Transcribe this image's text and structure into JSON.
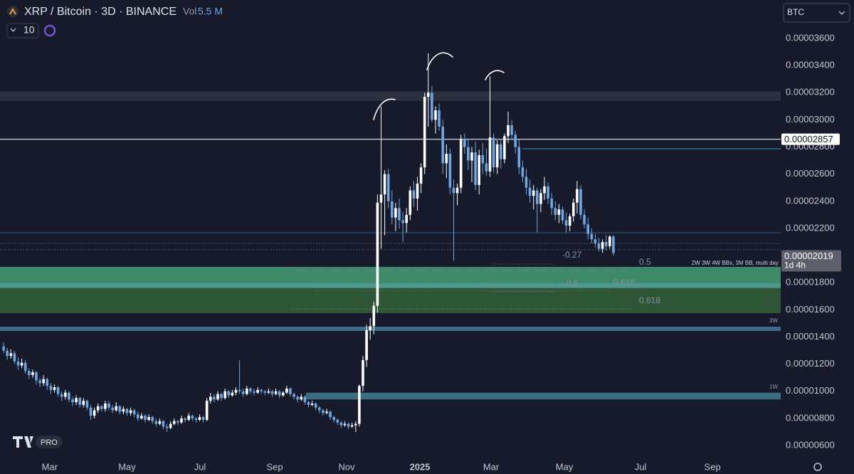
{
  "chart_data": {
    "type": "candlestick",
    "title": "XRP / Bitcoin · 3D · BINANCE",
    "volume_label": "Vol",
    "volume": "5.5 M",
    "interval_input": "10",
    "currency": "BTC",
    "up_color": "#ffffff",
    "down_color": "#6fa6df",
    "xlim": [
      -1,
      214.1
    ],
    "xticks": [
      {
        "value": 12.7,
        "label": "Mar"
      },
      {
        "value": 34,
        "label": "May"
      },
      {
        "value": 54.1,
        "label": "Jul"
      },
      {
        "value": 74.7,
        "label": "Sep"
      },
      {
        "value": 94.5,
        "label": "Nov"
      },
      {
        "value": 114.7,
        "label": "2025",
        "bold": true
      },
      {
        "value": 134.3,
        "label": "Mar"
      },
      {
        "value": 154.5,
        "label": "May"
      },
      {
        "value": 175.5,
        "label": "Jul"
      },
      {
        "value": 195.3,
        "label": "Sep"
      }
    ],
    "ylim": [
      5.27e-06,
      3.883e-05
    ],
    "yticks": [
      {
        "value": 6e-06,
        "label": "0.00000600"
      },
      {
        "value": 8e-06,
        "label": "0.00000800"
      },
      {
        "value": 1e-05,
        "label": "0.00001000"
      },
      {
        "value": 1.2e-05,
        "label": "0.00001200"
      },
      {
        "value": 1.4e-05,
        "label": "0.00001400"
      },
      {
        "value": 1.6e-05,
        "label": "0.00001600"
      },
      {
        "value": 1.8e-05,
        "label": "0.00001800"
      },
      {
        "value": 2e-05,
        "label": "0.00002000"
      },
      {
        "value": 2.2e-05,
        "label": "0.00002200"
      },
      {
        "value": 2.4e-05,
        "label": "0.00002400"
      },
      {
        "value": 2.6e-05,
        "label": "0.00002600"
      },
      {
        "value": 2.8e-05,
        "label": "0.00002800"
      },
      {
        "value": 3e-05,
        "label": "0.00003000"
      },
      {
        "value": 3.2e-05,
        "label": "0.00003200"
      },
      {
        "value": 3.4e-05,
        "label": "0.00003400"
      },
      {
        "value": 3.6e-05,
        "label": "0.00003600"
      }
    ],
    "grid": false,
    "zones": [
      {
        "top": 3.21e-05,
        "bottom": 3.14e-05,
        "color": "#2b3040"
      },
      {
        "top": 1.917e-05,
        "bottom": 1.796e-05,
        "color": "#3e8a68"
      },
      {
        "top": 1.796e-05,
        "bottom": 1.76e-05,
        "color": "#4d9a8c"
      },
      {
        "top": 1.76e-05,
        "bottom": 1.576e-05,
        "color": "#2e5636"
      },
      {
        "top": 1.476e-05,
        "bottom": 1.445e-05,
        "color": "#3c6c88",
        "name": "3W"
      },
      {
        "top": 9.9e-06,
        "bottom": 9.4e-06,
        "color": "#3a6f80",
        "start": 83.3,
        "name": "1W"
      }
    ],
    "lines": [
      {
        "value": 2.787e-05,
        "color": "#2f6f8f",
        "start": 143
      },
      {
        "value": 2.168e-05,
        "color": "#2c4868"
      },
      {
        "value": 2.09e-05,
        "color": "#5a5f6e",
        "dash": true
      },
      {
        "value": 2.043e-05,
        "color": "#5a5f6e",
        "dash": true
      }
    ],
    "price_line": {
      "value": 2.857e-05,
      "label": "0.00002857",
      "color": "#b8bcc6"
    },
    "last_price": {
      "value": 2.019e-05,
      "label": "0.00002019",
      "countdown": "1d 4h"
    },
    "fib_labels": [
      "-0.27",
      "0.5",
      "-0.5",
      "0.618",
      "0.618"
    ],
    "indicator_label": "2W 3W 4W BBs, 3M BB, multi day",
    "candles": [
      [
        1.33e-05,
        1.36e-05,
        1.28e-05,
        1.3e-05
      ],
      [
        1.3e-05,
        1.32e-05,
        1.23e-05,
        1.26e-05
      ],
      [
        1.26e-05,
        1.31e-05,
        1.24e-05,
        1.28e-05
      ],
      [
        1.28e-05,
        1.3e-05,
        1.2e-05,
        1.22e-05
      ],
      [
        1.22e-05,
        1.25e-05,
        1.16e-05,
        1.19e-05
      ],
      [
        1.19e-05,
        1.24e-05,
        1.17e-05,
        1.21e-05
      ],
      [
        1.21e-05,
        1.23e-05,
        1.13e-05,
        1.15e-05
      ],
      [
        1.15e-05,
        1.17e-05,
        1.09e-05,
        1.12e-05
      ],
      [
        1.12e-05,
        1.16e-05,
        1.1e-05,
        1.14e-05
      ],
      [
        1.14e-05,
        1.15e-05,
        1.05e-05,
        1.08e-05
      ],
      [
        1.08e-05,
        1.1e-05,
        1.03e-05,
        1.06e-05
      ],
      [
        1.06e-05,
        1.12e-05,
        1.04e-05,
        1.09e-05
      ],
      [
        1.09e-05,
        1.1e-05,
        1.01e-05,
        1.04e-05
      ],
      [
        1.04e-05,
        1.06e-05,
        9.8e-06,
        1.01e-05
      ],
      [
        1.01e-05,
        1.05e-05,
        9.9e-06,
        1.03e-05
      ],
      [
        1.03e-05,
        1.04e-05,
        9.6e-06,
        9.8e-06
      ],
      [
        9.8e-06,
        1e-05,
        9.3e-06,
        9.6e-06
      ],
      [
        9.6e-06,
        1.01e-05,
        9.4e-06,
        9.9e-06
      ],
      [
        9.9e-06,
        1e-05,
        9.2e-06,
        9.4e-06
      ],
      [
        9.4e-06,
        9.6e-06,
        8.9e-06,
        9.2e-06
      ],
      [
        9.2e-06,
        9.7e-06,
        9e-06,
        9.5e-06
      ],
      [
        9.5e-06,
        9.6e-06,
        8.8e-06,
        9e-06
      ],
      [
        9e-06,
        9.5e-06,
        8.8e-06,
        9.3e-06
      ],
      [
        9.3e-06,
        9.4e-06,
        8.6e-06,
        8.8e-06
      ],
      [
        8.8e-06,
        9e-06,
        7.9e-06,
        8.2e-06
      ],
      [
        8.2e-06,
        8.8e-06,
        8e-06,
        8.6e-06
      ],
      [
        8.6e-06,
        9.1e-06,
        8.4e-06,
        8.9e-06
      ],
      [
        8.9e-06,
        9e-06,
        8.5e-06,
        8.7e-06
      ],
      [
        8.7e-06,
        9.3e-06,
        8.5e-06,
        9.1e-06
      ],
      [
        9.1e-06,
        9.3e-06,
        8.6e-06,
        8.8e-06
      ],
      [
        8.8e-06,
        9e-06,
        8.4e-06,
        8.6e-06
      ],
      [
        8.6e-06,
        9.2e-06,
        8.5e-06,
        8.9e-06
      ],
      [
        8.9e-06,
        9e-06,
        8.3e-06,
        8.5e-06
      ],
      [
        8.5e-06,
        8.9e-06,
        8.3e-06,
        8.7e-06
      ],
      [
        8.7e-06,
        8.8e-06,
        8.2e-06,
        8.4e-06
      ],
      [
        8.4e-06,
        8.8e-06,
        8.2e-06,
        8.6e-06
      ],
      [
        8.6e-06,
        8.7e-06,
        8.1e-06,
        8.3e-06
      ],
      [
        8.3e-06,
        8.5e-06,
        7.8e-06,
        8e-06
      ],
      [
        8e-06,
        8.4e-06,
        7.9e-06,
        8.2e-06
      ],
      [
        8.2e-06,
        8.3e-06,
        7.7e-06,
        7.9e-06
      ],
      [
        7.9e-06,
        8.3e-06,
        7.8e-06,
        8.1e-06
      ],
      [
        8.1e-06,
        8.2e-06,
        7.6e-06,
        7.8e-06
      ],
      [
        7.8e-06,
        8e-06,
        7.4e-06,
        7.6e-06
      ],
      [
        7.6e-06,
        8e-06,
        7.5e-06,
        7.8e-06
      ],
      [
        7.8e-06,
        7.9e-06,
        7.2e-06,
        7.4e-06
      ],
      [
        7.4e-06,
        7.6e-06,
        7e-06,
        7.3e-06
      ],
      [
        7.3e-06,
        7.8e-06,
        7.2e-06,
        7.6e-06
      ],
      [
        7.6e-06,
        8e-06,
        7.5e-06,
        7.8e-06
      ],
      [
        7.8e-06,
        7.9e-06,
        7.5e-06,
        7.7e-06
      ],
      [
        7.7e-06,
        8.2e-06,
        7.6e-06,
        8e-06
      ],
      [
        8e-06,
        8.1e-06,
        7.7e-06,
        7.9e-06
      ],
      [
        7.9e-06,
        8.4e-06,
        7.8e-06,
        8.2e-06
      ],
      [
        8.2e-06,
        8.3e-06,
        7.8e-06,
        8e-06
      ],
      [
        8e-06,
        8.1e-06,
        7.7e-06,
        7.9e-06
      ],
      [
        7.9e-06,
        8.3e-06,
        7.8e-06,
        8.1e-06
      ],
      [
        8.1e-06,
        8.2e-06,
        7.7e-06,
        7.9e-06
      ],
      [
        7.9e-06,
        9.5e-06,
        7.8e-06,
        9.3e-06
      ],
      [
        9.3e-06,
        9.9e-06,
        9.1e-06,
        9.6e-06
      ],
      [
        9.6e-06,
        9.8e-06,
        9.2e-06,
        9.4e-06
      ],
      [
        9.4e-06,
        1e-05,
        9.3e-06,
        9.8e-06
      ],
      [
        9.8e-06,
        9.9e-06,
        9.3e-06,
        9.5e-06
      ],
      [
        9.5e-06,
        1.02e-05,
        9.4e-06,
        1e-05
      ],
      [
        1e-05,
        1.01e-05,
        9.5e-06,
        9.7e-06
      ],
      [
        9.7e-06,
        1.01e-05,
        9.6e-06,
        9.9e-06
      ],
      [
        9.9e-06,
        1.03e-05,
        9.7e-06,
        1.01e-05
      ],
      [
        1.01e-05,
        1.23e-05,
        9.8e-06,
        1e-05
      ],
      [
        1e-05,
        1.02e-05,
        9.6e-06,
        9.8e-06
      ],
      [
        9.8e-06,
        1.04e-05,
        9.7e-06,
        1.02e-05
      ],
      [
        1.02e-05,
        1.03e-05,
        9.8e-06,
        1e-05
      ],
      [
        1e-05,
        1.02e-05,
        9.7e-06,
        9.9e-06
      ],
      [
        9.9e-06,
        1.03e-05,
        9.8e-06,
        1.01e-05
      ],
      [
        1.01e-05,
        1.02e-05,
        9.8e-06,
        1e-05
      ],
      [
        1e-05,
        1.01e-05,
        9.7e-06,
        9.9e-06
      ],
      [
        9.9e-06,
        1.02e-05,
        9.8e-06,
        1e-05
      ],
      [
        1e-05,
        1.01e-05,
        9.6e-06,
        9.8e-06
      ],
      [
        9.8e-06,
        1.02e-05,
        9.7e-06,
        1e-05
      ],
      [
        1e-05,
        1.01e-05,
        9.5e-06,
        9.7e-06
      ],
      [
        9.7e-06,
        1e-05,
        9.6e-06,
        9.9e-06
      ],
      [
        9.9e-06,
        1.04e-05,
        9.8e-06,
        1.02e-05
      ],
      [
        1.02e-05,
        1.03e-05,
        9.6e-06,
        9.8e-06
      ],
      [
        9.8e-06,
        9.9e-06,
        9.4e-06,
        9.6e-06
      ],
      [
        9.6e-06,
        9.7e-06,
        9.2e-06,
        9.4e-06
      ],
      [
        9.4e-06,
        9.8e-06,
        9.3e-06,
        9.6e-06
      ],
      [
        9.6e-06,
        9.7e-06,
        9e-06,
        9.2e-06
      ],
      [
        9.2e-06,
        9.3e-06,
        8.8e-06,
        9e-06
      ],
      [
        9e-06,
        9.3e-06,
        8.9e-06,
        9.1e-06
      ],
      [
        9.1e-06,
        9.2e-06,
        8.6e-06,
        8.8e-06
      ],
      [
        8.8e-06,
        8.9e-06,
        8.4e-06,
        8.6e-06
      ],
      [
        8.6e-06,
        8.7e-06,
        8.2e-06,
        8.4e-06
      ],
      [
        8.4e-06,
        8.7e-06,
        8.3e-06,
        8.5e-06
      ],
      [
        8.5e-06,
        8.6e-06,
        7.9e-06,
        8.1e-06
      ],
      [
        8.1e-06,
        8.2e-06,
        7.7e-06,
        7.9e-06
      ],
      [
        7.9e-06,
        8e-06,
        7.5e-06,
        7.7e-06
      ],
      [
        7.7e-06,
        7.8e-06,
        7.3e-06,
        7.5e-06
      ],
      [
        7.5e-06,
        7.8e-06,
        7.4e-06,
        7.6e-06
      ],
      [
        7.6e-06,
        7.7e-06,
        7.2e-06,
        7.4e-06
      ],
      [
        7.4e-06,
        7.7e-06,
        7.3e-06,
        7.5e-06
      ],
      [
        7.5e-06,
        7.8e-06,
        7e-06,
        7.6e-06
      ],
      [
        7.6e-06,
        1.05e-05,
        7.4e-06,
        1.04e-05
      ],
      [
        1.04e-05,
        1.26e-05,
        1e-05,
        1.23e-05
      ],
      [
        1.23e-05,
        1.49e-05,
        1.18e-05,
        1.45e-05
      ],
      [
        1.45e-05,
        1.54e-05,
        1.38e-05,
        1.48e-05
      ],
      [
        1.48e-05,
        1.66e-05,
        1.42e-05,
        1.63e-05
      ],
      [
        1.63e-05,
        2.45e-05,
        1.58e-05,
        2.39e-05
      ],
      [
        2.39e-05,
        3.1e-05,
        2.05e-05,
        2.45e-05
      ],
      [
        2.45e-05,
        2.63e-05,
        2.15e-05,
        2.6e-05
      ],
      [
        2.6e-05,
        2.64e-05,
        2.35e-05,
        2.4e-05
      ],
      [
        2.4e-05,
        2.48e-05,
        2.23e-05,
        2.28e-05
      ],
      [
        2.28e-05,
        2.39e-05,
        2.18e-05,
        2.35e-05
      ],
      [
        2.35e-05,
        2.42e-05,
        2.2e-05,
        2.26e-05
      ],
      [
        2.26e-05,
        2.32e-05,
        2.1e-05,
        2.24e-05
      ],
      [
        2.24e-05,
        2.35e-05,
        2.17e-05,
        2.3e-05
      ],
      [
        2.3e-05,
        2.51e-05,
        2.26e-05,
        2.48e-05
      ],
      [
        2.48e-05,
        2.55e-05,
        2.36e-05,
        2.42e-05
      ],
      [
        2.42e-05,
        2.58e-05,
        2.33e-05,
        2.53e-05
      ],
      [
        2.53e-05,
        2.68e-05,
        2.46e-05,
        2.65e-05
      ],
      [
        2.65e-05,
        3.2e-05,
        2.6e-05,
        3.17e-05
      ],
      [
        3.17e-05,
        3.49e-05,
        2.95e-05,
        3.2e-05
      ],
      [
        3.2e-05,
        3.25e-05,
        2.98e-05,
        3e-05
      ],
      [
        3e-05,
        3.1e-05,
        2.9e-05,
        3.07e-05
      ],
      [
        3.07e-05,
        3.12e-05,
        2.92e-05,
        2.95e-05
      ],
      [
        2.95e-05,
        3e-05,
        2.6e-05,
        2.68e-05
      ],
      [
        2.68e-05,
        2.82e-05,
        2.57e-05,
        2.75e-05
      ],
      [
        2.75e-05,
        2.79e-05,
        2.45e-05,
        2.5e-05
      ],
      [
        2.5e-05,
        2.56e-05,
        1.96e-05,
        2.46e-05
      ],
      [
        2.46e-05,
        2.53e-05,
        2.37e-05,
        2.5e-05
      ],
      [
        2.5e-05,
        2.89e-05,
        2.46e-05,
        2.86e-05
      ],
      [
        2.86e-05,
        2.9e-05,
        2.75e-05,
        2.8e-05
      ],
      [
        2.8e-05,
        2.86e-05,
        2.63e-05,
        2.7e-05
      ],
      [
        2.7e-05,
        2.8e-05,
        2.54e-05,
        2.76e-05
      ],
      [
        2.76e-05,
        2.84e-05,
        2.48e-05,
        2.52e-05
      ],
      [
        2.52e-05,
        2.78e-05,
        2.45e-05,
        2.74e-05
      ],
      [
        2.74e-05,
        2.83e-05,
        2.6e-05,
        2.68e-05
      ],
      [
        2.68e-05,
        2.79e-05,
        2.59e-05,
        2.62e-05
      ],
      [
        2.62e-05,
        3.32e-05,
        2.58e-05,
        2.87e-05
      ],
      [
        2.87e-05,
        2.9e-05,
        2.61e-05,
        2.65e-05
      ],
      [
        2.65e-05,
        2.85e-05,
        2.6e-05,
        2.82e-05
      ],
      [
        2.82e-05,
        2.86e-05,
        2.64e-05,
        2.71e-05
      ],
      [
        2.71e-05,
        2.9e-05,
        2.68e-05,
        2.88e-05
      ],
      [
        2.88e-05,
        3.06e-05,
        2.83e-05,
        2.96e-05
      ],
      [
        2.96e-05,
        3e-05,
        2.85e-05,
        2.89e-05
      ],
      [
        2.89e-05,
        2.92e-05,
        2.75e-05,
        2.8e-05
      ],
      [
        2.8e-05,
        2.86e-05,
        2.6e-05,
        2.65e-05
      ],
      [
        2.65e-05,
        2.7e-05,
        2.54e-05,
        2.58e-05
      ],
      [
        2.58e-05,
        2.64e-05,
        2.45e-05,
        2.5e-05
      ],
      [
        2.5e-05,
        2.56e-05,
        2.39e-05,
        2.44e-05
      ],
      [
        2.44e-05,
        2.52e-05,
        2.34e-05,
        2.48e-05
      ],
      [
        2.48e-05,
        2.5e-05,
        2.17e-05,
        2.38e-05
      ],
      [
        2.38e-05,
        2.49e-05,
        2.32e-05,
        2.46e-05
      ],
      [
        2.46e-05,
        2.58e-05,
        2.41e-05,
        2.51e-05
      ],
      [
        2.51e-05,
        2.54e-05,
        2.38e-05,
        2.42e-05
      ],
      [
        2.42e-05,
        2.46e-05,
        2.3e-05,
        2.35e-05
      ],
      [
        2.35e-05,
        2.4e-05,
        2.26e-05,
        2.3e-05
      ],
      [
        2.3e-05,
        2.38e-05,
        2.24e-05,
        2.34e-05
      ],
      [
        2.34e-05,
        2.36e-05,
        2.23e-05,
        2.26e-05
      ],
      [
        2.26e-05,
        2.32e-05,
        2.17e-05,
        2.22e-05
      ],
      [
        2.22e-05,
        2.31e-05,
        2.18e-05,
        2.29e-05
      ],
      [
        2.29e-05,
        2.42e-05,
        2.25e-05,
        2.39e-05
      ],
      [
        2.39e-05,
        2.55e-05,
        2.31e-05,
        2.49e-05
      ],
      [
        2.49e-05,
        2.52e-05,
        2.27e-05,
        2.3e-05
      ],
      [
        2.3e-05,
        2.34e-05,
        2.2e-05,
        2.23e-05
      ],
      [
        2.23e-05,
        2.28e-05,
        2.12e-05,
        2.16e-05
      ],
      [
        2.16e-05,
        2.2e-05,
        2.09e-05,
        2.12e-05
      ],
      [
        2.12e-05,
        2.16e-05,
        2.06e-05,
        2.09e-05
      ],
      [
        2.09e-05,
        2.13e-05,
        2.03e-05,
        2.05e-05
      ],
      [
        2.05e-05,
        2.12e-05,
        2.02e-05,
        2.1e-05
      ],
      [
        2.1e-05,
        2.15e-05,
        2.04e-05,
        2.07e-05
      ],
      [
        2.07e-05,
        2.15e-05,
        2.05e-05,
        2.14e-05
      ],
      [
        2.14e-05,
        2.15e-05,
        2e-05,
        2.019e-05
      ]
    ]
  }
}
